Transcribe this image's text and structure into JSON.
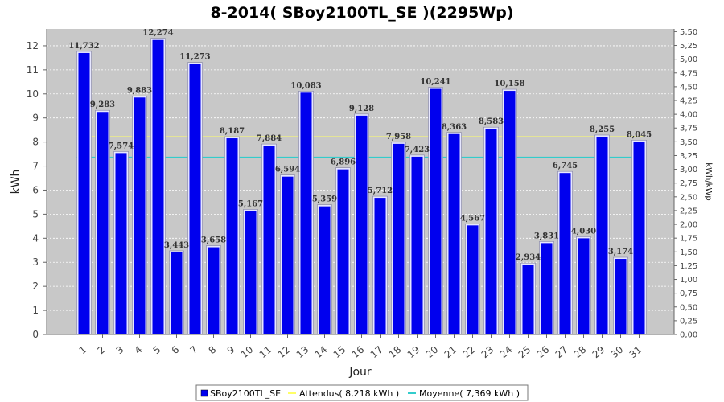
{
  "chart_data": {
    "type": "bar",
    "title": "8-2014( SBoy2100TL_SE )(2295Wp)",
    "xlabel": "Jour",
    "ylabel": "kWh",
    "y2label": "kWh/kWp",
    "ylim": [
      0,
      12.7
    ],
    "y2lim": [
      0,
      5.55
    ],
    "y_ticks": [
      0,
      1,
      2,
      3,
      4,
      5,
      6,
      7,
      8,
      9,
      10,
      11,
      12
    ],
    "y2_ticks": [
      "0,00",
      "0,25",
      "0,50",
      "0,75",
      "1,00",
      "1,25",
      "1,50",
      "1,75",
      "2,00",
      "2,25",
      "2,50",
      "2,75",
      "3,00",
      "3,25",
      "3,50",
      "3,75",
      "4,00",
      "4,25",
      "4,50",
      "4,75",
      "5,00",
      "5,25",
      "5,50"
    ],
    "categories": [
      "1",
      "2",
      "3",
      "4",
      "5",
      "6",
      "7",
      "8",
      "9",
      "10",
      "11",
      "12",
      "13",
      "14",
      "15",
      "16",
      "17",
      "18",
      "19",
      "20",
      "21",
      "22",
      "23",
      "24",
      "25",
      "26",
      "27",
      "28",
      "29",
      "30",
      "31"
    ],
    "series": [
      {
        "name": "SBoy2100TL_SE",
        "color": "#0000ee",
        "values": [
          11.732,
          9.283,
          7.574,
          9.883,
          12.274,
          3.443,
          11.273,
          3.658,
          8.187,
          5.167,
          7.884,
          6.594,
          10.083,
          5.359,
          6.896,
          9.128,
          5.712,
          7.958,
          7.423,
          10.241,
          8.363,
          4.567,
          8.583,
          10.158,
          2.934,
          3.831,
          6.745,
          4.03,
          8.255,
          3.174,
          8.045
        ],
        "labels": [
          "11,732",
          "9,283",
          "7,574",
          "9,883",
          "12,274",
          "3,443",
          "11,273",
          "3,658",
          "8,187",
          "5,167",
          "7,884",
          "6,594",
          "10,083",
          "5,359",
          "6,896",
          "9,128",
          "5,712",
          "7,958",
          "7,423",
          "10,241",
          "8,363",
          "4,567",
          "8,583",
          "10,158",
          "2,934",
          "3,831",
          "6,745",
          "4,030",
          "8,255",
          "3,174",
          "8,045"
        ]
      }
    ],
    "reference_lines": [
      {
        "name": "Attendus( 8,218 kWh )",
        "value": 8.218,
        "color": "#ffff66"
      },
      {
        "name": "Moyenne( 7,369 kWh )",
        "value": 7.369,
        "color": "#33cccc"
      }
    ],
    "grid": true,
    "legend_position": "bottom",
    "plot_background": "#c8c8c8"
  }
}
